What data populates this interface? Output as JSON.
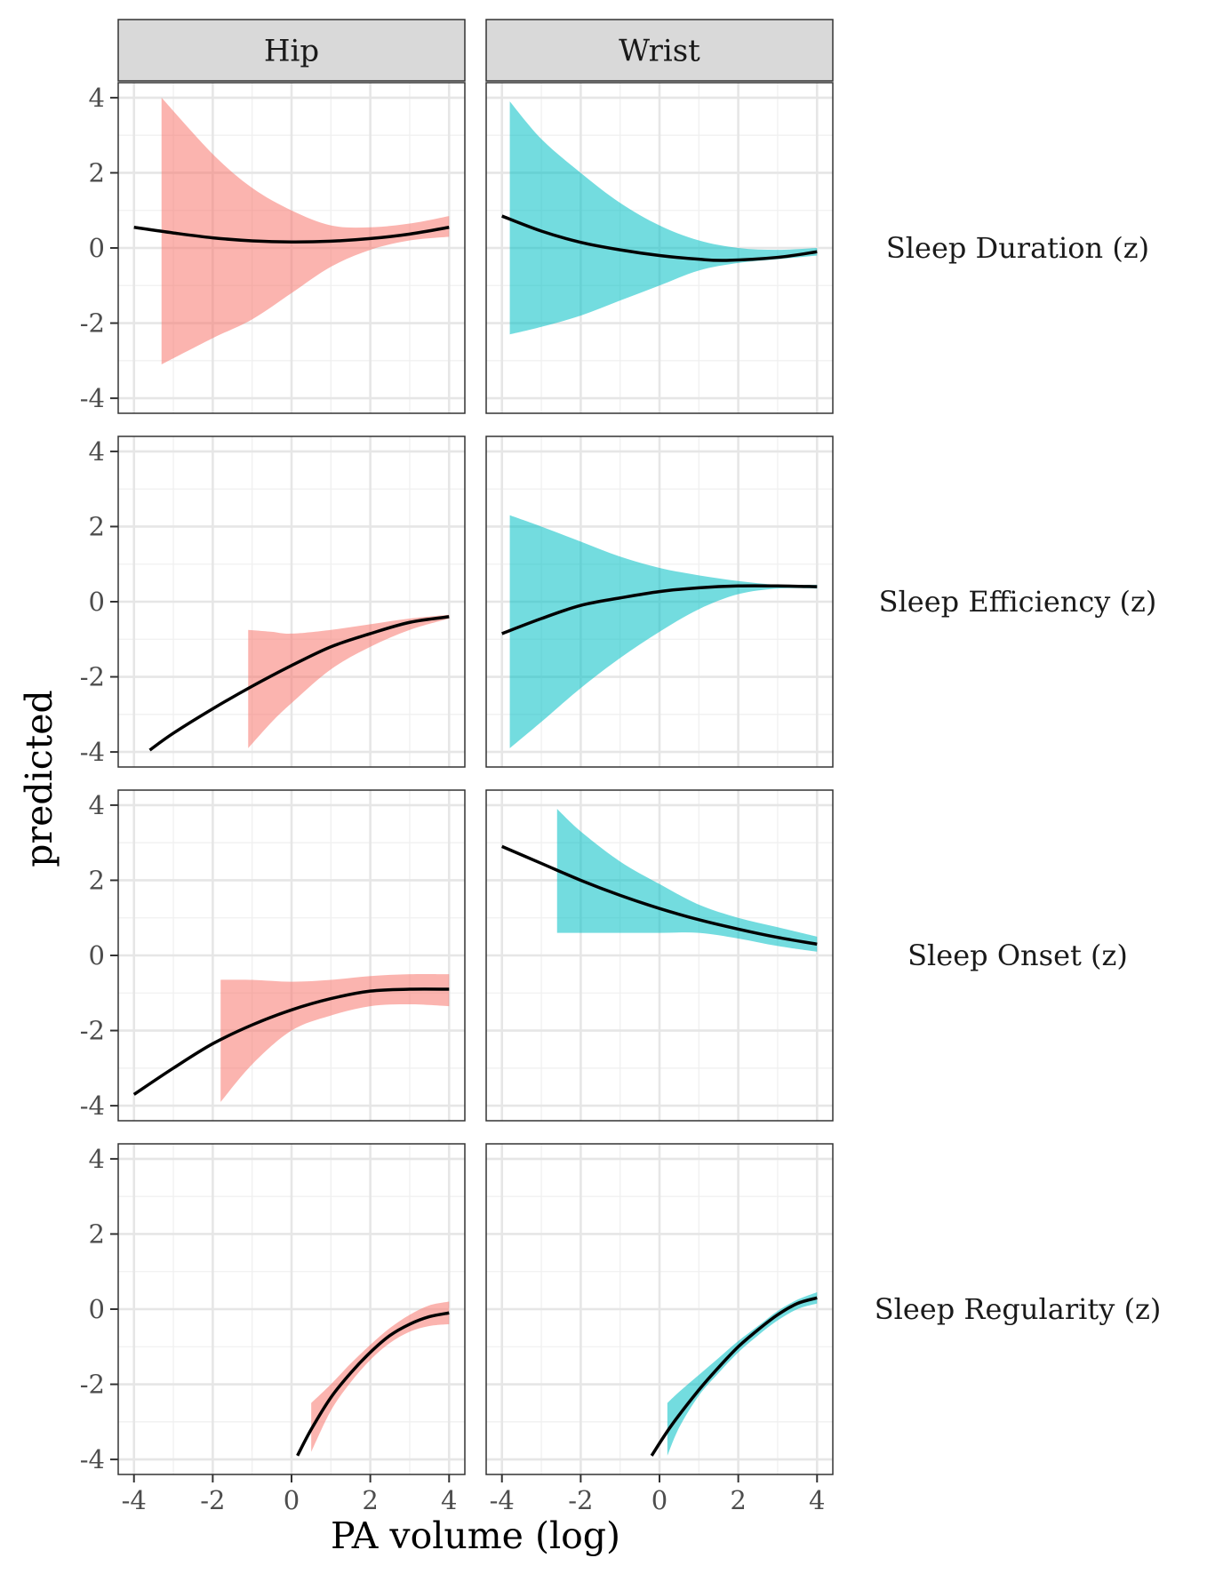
{
  "chart_data": {
    "type": "line",
    "xlabel": "PA volume (log)",
    "ylabel": "predicted",
    "xlim": [
      -4.4,
      4.4
    ],
    "ylim": [
      -4.4,
      4.4
    ],
    "x_ticks": [
      -4,
      -2,
      0,
      2,
      4
    ],
    "y_ticks": [
      -4,
      -2,
      0,
      2,
      4
    ],
    "x_tick_labels": [
      "-4",
      "-2",
      "0",
      "2",
      "4"
    ],
    "y_tick_labels": [
      "-4",
      "-2",
      "0",
      "2",
      "4"
    ],
    "grid": true,
    "columns": [
      "Hip",
      "Wrist"
    ],
    "rows": [
      "Sleep Duration (z)",
      "Sleep Efficiency (z)",
      "Sleep Onset (z)",
      "Sleep Regularity (z)"
    ],
    "colors": {
      "Hip": "#F8766D",
      "Wrist": "#00BFC4",
      "line": "#000000"
    },
    "panels": [
      {
        "row": 0,
        "col": 0,
        "line_x": [
          -4,
          -3,
          -2,
          -1,
          0,
          1,
          2,
          3,
          4
        ],
        "line_y": [
          0.55,
          0.4,
          0.27,
          0.19,
          0.16,
          0.18,
          0.25,
          0.37,
          0.55
        ],
        "band_x": [
          -3.3,
          -2,
          -1,
          0,
          1,
          2,
          3,
          4
        ],
        "band_lower": [
          -3.1,
          -2.4,
          -1.9,
          -1.2,
          -0.5,
          -0.05,
          0.2,
          0.3
        ],
        "band_upper": [
          4.0,
          2.5,
          1.6,
          1.0,
          0.6,
          0.55,
          0.65,
          0.85
        ]
      },
      {
        "row": 0,
        "col": 1,
        "line_x": [
          -4,
          -3,
          -2,
          -1,
          0,
          1,
          1.7,
          3,
          4
        ],
        "line_y": [
          0.85,
          0.45,
          0.15,
          -0.05,
          -0.2,
          -0.3,
          -0.33,
          -0.25,
          -0.1
        ],
        "band_x": [
          -3.8,
          -3,
          -2,
          -1,
          0,
          1,
          2,
          3,
          4
        ],
        "band_lower": [
          -2.3,
          -2.1,
          -1.8,
          -1.4,
          -1.0,
          -0.6,
          -0.4,
          -0.3,
          -0.2
        ],
        "band_upper": [
          3.9,
          2.9,
          2.0,
          1.2,
          0.6,
          0.2,
          0.0,
          -0.05,
          0.0
        ]
      },
      {
        "row": 1,
        "col": 0,
        "line_x": [
          -3.6,
          -3,
          -2,
          -1,
          0,
          1,
          2,
          3,
          4
        ],
        "line_y": [
          -3.95,
          -3.5,
          -2.85,
          -2.25,
          -1.7,
          -1.2,
          -0.85,
          -0.55,
          -0.4
        ],
        "band_x": [
          -1.1,
          -0.5,
          0,
          1,
          2,
          3,
          4
        ],
        "band_lower": [
          -3.9,
          -3.2,
          -2.7,
          -1.8,
          -1.2,
          -0.75,
          -0.45
        ],
        "band_upper": [
          -0.75,
          -0.8,
          -0.85,
          -0.75,
          -0.6,
          -0.45,
          -0.35
        ]
      },
      {
        "row": 1,
        "col": 1,
        "line_x": [
          -4,
          -3,
          -2,
          -1,
          0,
          1,
          2,
          3,
          4
        ],
        "line_y": [
          -0.85,
          -0.45,
          -0.1,
          0.1,
          0.27,
          0.37,
          0.42,
          0.42,
          0.4
        ],
        "band_x": [
          -3.8,
          -3,
          -2,
          -1,
          0,
          1,
          2,
          3,
          4
        ],
        "band_lower": [
          -3.9,
          -3.2,
          -2.3,
          -1.5,
          -0.8,
          -0.2,
          0.2,
          0.35,
          0.35
        ],
        "band_upper": [
          2.3,
          2.0,
          1.6,
          1.2,
          0.9,
          0.7,
          0.55,
          0.45,
          0.45
        ]
      },
      {
        "row": 2,
        "col": 0,
        "line_x": [
          -4,
          -3,
          -2,
          -1,
          0,
          1,
          2,
          3,
          4
        ],
        "line_y": [
          -3.7,
          -3.0,
          -2.35,
          -1.85,
          -1.45,
          -1.15,
          -0.95,
          -0.9,
          -0.9
        ],
        "band_x": [
          -1.8,
          -1,
          0,
          1,
          2,
          3,
          4
        ],
        "band_lower": [
          -3.9,
          -2.9,
          -2.0,
          -1.6,
          -1.35,
          -1.3,
          -1.35
        ],
        "band_upper": [
          -0.65,
          -0.65,
          -0.7,
          -0.65,
          -0.55,
          -0.5,
          -0.5
        ]
      },
      {
        "row": 2,
        "col": 1,
        "line_x": [
          -4,
          -3,
          -2,
          -1,
          0,
          1,
          2,
          3,
          4
        ],
        "line_y": [
          2.9,
          2.45,
          2.0,
          1.6,
          1.25,
          0.95,
          0.7,
          0.48,
          0.3
        ],
        "band_x": [
          -2.6,
          -2,
          -1,
          0,
          1,
          2,
          3,
          4
        ],
        "band_lower": [
          0.6,
          0.6,
          0.6,
          0.6,
          0.6,
          0.45,
          0.25,
          0.1
        ],
        "band_upper": [
          3.9,
          3.3,
          2.5,
          1.9,
          1.35,
          1.0,
          0.75,
          0.5
        ]
      },
      {
        "row": 3,
        "col": 0,
        "line_x": [
          0.15,
          0.5,
          1,
          1.5,
          2,
          2.5,
          3,
          3.5,
          4
        ],
        "line_y": [
          -3.9,
          -3.2,
          -2.35,
          -1.7,
          -1.15,
          -0.7,
          -0.4,
          -0.2,
          -0.1
        ],
        "band_x": [
          0.5,
          1,
          1.5,
          2,
          2.5,
          3,
          3.5,
          4
        ],
        "band_lower": [
          -3.8,
          -2.7,
          -1.95,
          -1.35,
          -0.9,
          -0.6,
          -0.45,
          -0.4
        ],
        "band_upper": [
          -2.5,
          -2.0,
          -1.45,
          -0.95,
          -0.5,
          -0.15,
          0.1,
          0.2
        ]
      },
      {
        "row": 3,
        "col": 1,
        "line_x": [
          -0.2,
          0.3,
          1,
          1.5,
          2,
          2.5,
          3,
          3.5,
          4
        ],
        "line_y": [
          -3.9,
          -3.1,
          -2.15,
          -1.55,
          -1.0,
          -0.55,
          -0.15,
          0.15,
          0.3
        ],
        "band_x": [
          0.2,
          0.5,
          1,
          1.5,
          2,
          2.5,
          3,
          3.5,
          4
        ],
        "band_lower": [
          -3.9,
          -3.15,
          -2.3,
          -1.7,
          -1.15,
          -0.7,
          -0.3,
          0.0,
          0.15
        ],
        "band_upper": [
          -2.5,
          -2.2,
          -1.75,
          -1.3,
          -0.85,
          -0.45,
          -0.05,
          0.25,
          0.45
        ]
      }
    ]
  }
}
